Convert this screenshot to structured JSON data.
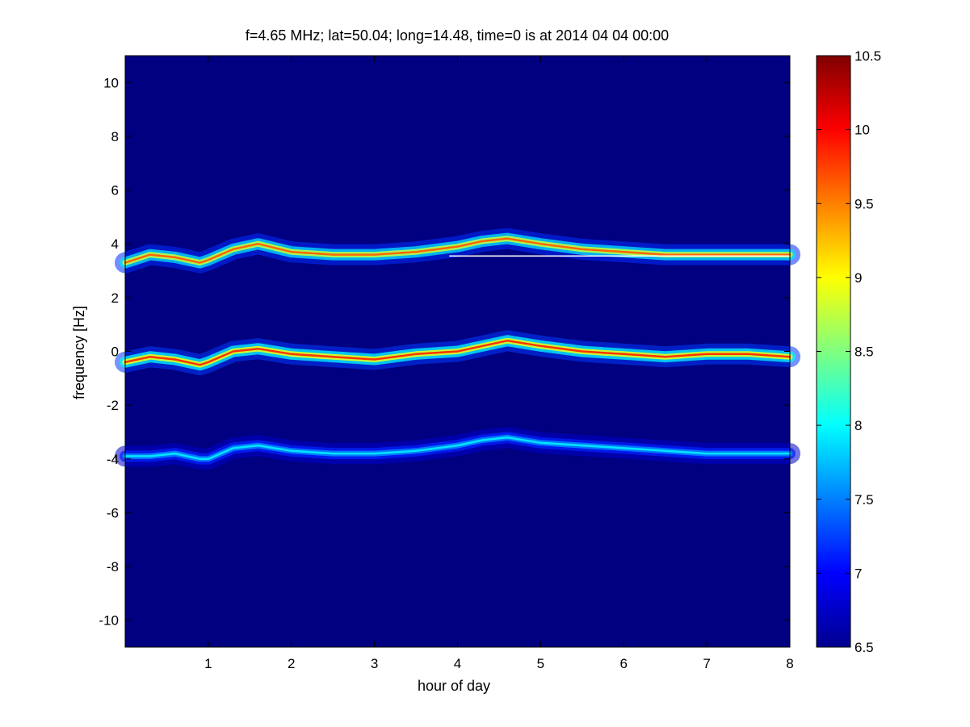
{
  "chart_data": {
    "type": "heatmap",
    "title": "f=4.65 MHz;  lat=50.04; long=14.48, time=0 is at 2014 04 04 00:00",
    "xlabel": "hour of day",
    "ylabel": "frequency [Hz]",
    "xlim": [
      0,
      8
    ],
    "ylim": [
      -11,
      11
    ],
    "x_ticks": [
      1,
      2,
      3,
      4,
      5,
      6,
      7,
      8
    ],
    "y_ticks": [
      -10,
      -8,
      -6,
      -4,
      -2,
      0,
      2,
      4,
      6,
      8,
      10
    ],
    "colorbar": {
      "range": [
        6.5,
        10.5
      ],
      "ticks": [
        6.5,
        7,
        7.5,
        8,
        8.5,
        9,
        9.5,
        10,
        10.5
      ],
      "colormap": "jet"
    },
    "background_value": 6.5,
    "series": [
      {
        "x": [
          0,
          0.3,
          0.6,
          0.9,
          1.0,
          1.3,
          1.6,
          2.0,
          2.5,
          3.0,
          3.5,
          4.0,
          4.3,
          4.6,
          5.0,
          5.5,
          6.0,
          6.5,
          7.0,
          7.5,
          8.0
        ],
        "y": [
          3.3,
          3.6,
          3.5,
          3.3,
          3.4,
          3.8,
          4.0,
          3.7,
          3.6,
          3.6,
          3.7,
          3.9,
          4.1,
          4.2,
          4.0,
          3.8,
          3.7,
          3.6,
          3.6,
          3.6,
          3.6
        ],
        "peak": 9.6
      },
      {
        "x": [
          0,
          0.3,
          0.6,
          0.9,
          1.0,
          1.3,
          1.6,
          2.0,
          2.5,
          3.0,
          3.5,
          4.0,
          4.3,
          4.6,
          5.0,
          5.5,
          6.0,
          6.5,
          7.0,
          7.5,
          8.0
        ],
        "y": [
          -0.4,
          -0.2,
          -0.3,
          -0.5,
          -0.4,
          0.0,
          0.1,
          -0.1,
          -0.2,
          -0.3,
          -0.1,
          0.0,
          0.2,
          0.4,
          0.2,
          0.0,
          -0.1,
          -0.2,
          -0.1,
          -0.1,
          -0.2
        ],
        "peak": 9.8
      },
      {
        "x": [
          0,
          0.3,
          0.6,
          0.9,
          1.0,
          1.3,
          1.6,
          2.0,
          2.5,
          3.0,
          3.5,
          4.0,
          4.3,
          4.6,
          5.0,
          5.5,
          6.0,
          6.5,
          7.0,
          7.5,
          8.0
        ],
        "y": [
          -3.9,
          -3.9,
          -3.8,
          -4.0,
          -4.0,
          -3.6,
          -3.5,
          -3.7,
          -3.8,
          -3.8,
          -3.7,
          -3.5,
          -3.3,
          -3.2,
          -3.4,
          -3.5,
          -3.6,
          -3.7,
          -3.8,
          -3.8,
          -3.8
        ],
        "peak": 7.9
      }
    ],
    "reference_line": {
      "x": [
        3.9,
        8.0
      ],
      "y": 3.55,
      "color": "#ffffff"
    }
  }
}
